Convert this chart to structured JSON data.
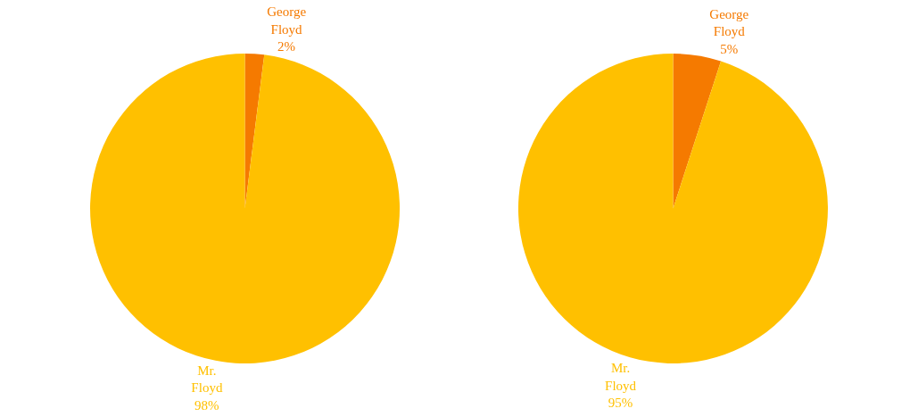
{
  "chart_data": [
    {
      "type": "pie",
      "categories": [
        "George Floyd",
        "Mr. Floyd"
      ],
      "values": [
        2,
        98
      ],
      "colors": [
        "#f57a00",
        "#ffc000"
      ],
      "value_labels": [
        "2%",
        "98%"
      ],
      "legend": false
    },
    {
      "type": "pie",
      "categories": [
        "George Floyd",
        "Mr. Floyd"
      ],
      "values": [
        5,
        95
      ],
      "colors": [
        "#f57a00",
        "#ffc000"
      ],
      "value_labels": [
        "5%",
        "95%"
      ],
      "legend": false
    }
  ]
}
